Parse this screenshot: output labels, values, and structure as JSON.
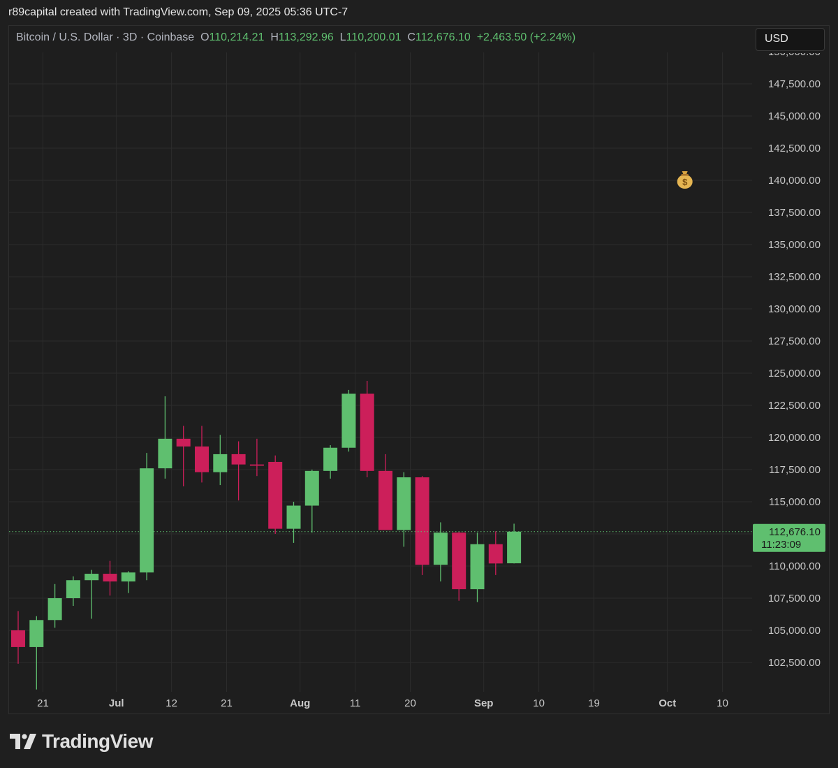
{
  "header": {
    "attribution": "r89capital created with TradingView.com, Sep 09, 2025 05:36 UTC-7"
  },
  "legend": {
    "symbol": "Bitcoin / U.S. Dollar · 3D · Coinbase",
    "o_label": "O",
    "o_value": "110,214.21",
    "h_label": "H",
    "h_value": "113,292.96",
    "l_label": "L",
    "l_value": "110,200.01",
    "c_label": "C",
    "c_value": "112,676.10",
    "change": "+2,463.50 (+2.24%)"
  },
  "currency_button": "USD",
  "price_label": {
    "price": "112,676.10",
    "countdown": "11:23:09"
  },
  "marker_icon": "money-bag-icon",
  "brand": "TradingView",
  "colors": {
    "up": "#5fbf6f",
    "down": "#cc1f5a",
    "background": "#1e1e1e",
    "grid": "#2c2c2c",
    "text": "#c8c8c8"
  },
  "chart_data": {
    "type": "candlestick",
    "title": "Bitcoin / U.S. Dollar · 3D · Coinbase",
    "ylim": [
      100000,
      150000
    ],
    "y_ticks": [
      102500,
      105000,
      107500,
      110000,
      112500,
      115000,
      117500,
      120000,
      122500,
      125000,
      127500,
      130000,
      132500,
      135000,
      137500,
      140000,
      142500,
      145000,
      147500
    ],
    "y_tick_labels": [
      "102,500.00",
      "105,000.00",
      "107,500.00",
      "110,000.00",
      "",
      "115,000.00",
      "117,500.00",
      "120,000.00",
      "122,500.00",
      "125,000.00",
      "127,500.00",
      "130,000.00",
      "132,500.00",
      "135,000.00",
      "137,500.00",
      "140,000.00",
      "142,500.00",
      "145,000.00",
      "147,500.00"
    ],
    "x_ticks": [
      {
        "label": "21",
        "index": 1.35,
        "bold": false
      },
      {
        "label": "Jul",
        "index": 5.35,
        "bold": true
      },
      {
        "label": "12",
        "index": 8.35,
        "bold": false
      },
      {
        "label": "21",
        "index": 11.35,
        "bold": false
      },
      {
        "label": "Aug",
        "index": 15.35,
        "bold": true
      },
      {
        "label": "11",
        "index": 18.35,
        "bold": false
      },
      {
        "label": "20",
        "index": 21.35,
        "bold": false
      },
      {
        "label": "Sep",
        "index": 25.35,
        "bold": true
      },
      {
        "label": "10",
        "index": 28.35,
        "bold": false
      },
      {
        "label": "19",
        "index": 31.35,
        "bold": false
      },
      {
        "label": "Oct",
        "index": 35.35,
        "bold": true
      },
      {
        "label": "10",
        "index": 38.35,
        "bold": false
      }
    ],
    "candles": [
      {
        "o": 105000,
        "h": 106500,
        "l": 102400,
        "c": 103700
      },
      {
        "o": 103700,
        "h": 106100,
        "l": 100400,
        "c": 105800
      },
      {
        "o": 105800,
        "h": 108600,
        "l": 105200,
        "c": 107500
      },
      {
        "o": 107500,
        "h": 109200,
        "l": 106900,
        "c": 108900
      },
      {
        "o": 108900,
        "h": 109700,
        "l": 105900,
        "c": 109400
      },
      {
        "o": 109400,
        "h": 110400,
        "l": 107700,
        "c": 108800
      },
      {
        "o": 108800,
        "h": 109600,
        "l": 107900,
        "c": 109500
      },
      {
        "o": 109500,
        "h": 118800,
        "l": 108900,
        "c": 117600
      },
      {
        "o": 117600,
        "h": 123200,
        "l": 116800,
        "c": 119900
      },
      {
        "o": 119900,
        "h": 120900,
        "l": 116200,
        "c": 119300
      },
      {
        "o": 119300,
        "h": 120900,
        "l": 116500,
        "c": 117300
      },
      {
        "o": 117300,
        "h": 120200,
        "l": 116300,
        "c": 118700
      },
      {
        "o": 118700,
        "h": 119700,
        "l": 115100,
        "c": 117900
      },
      {
        "o": 117900,
        "h": 119900,
        "l": 117000,
        "c": 117800
      },
      {
        "o": 118100,
        "h": 118600,
        "l": 112500,
        "c": 112900
      },
      {
        "o": 112900,
        "h": 115000,
        "l": 111800,
        "c": 114700
      },
      {
        "o": 114700,
        "h": 117500,
        "l": 112600,
        "c": 117400
      },
      {
        "o": 117400,
        "h": 119400,
        "l": 116800,
        "c": 119200
      },
      {
        "o": 119200,
        "h": 123700,
        "l": 118900,
        "c": 123400
      },
      {
        "o": 123400,
        "h": 124400,
        "l": 116900,
        "c": 117400
      },
      {
        "o": 117400,
        "h": 118700,
        "l": 112800,
        "c": 112800
      },
      {
        "o": 112800,
        "h": 117300,
        "l": 111500,
        "c": 116900
      },
      {
        "o": 116900,
        "h": 117000,
        "l": 109300,
        "c": 110100
      },
      {
        "o": 110100,
        "h": 113400,
        "l": 108800,
        "c": 112600
      },
      {
        "o": 112600,
        "h": 112700,
        "l": 107300,
        "c": 108200
      },
      {
        "o": 108200,
        "h": 112600,
        "l": 107200,
        "c": 111700
      },
      {
        "o": 111700,
        "h": 112700,
        "l": 109300,
        "c": 110200
      },
      {
        "o": 110214.21,
        "h": 113292.96,
        "l": 110200.01,
        "c": 112676.1
      }
    ],
    "last_price": 112676.1,
    "marker": {
      "index": 36.3,
      "price": 140000
    }
  }
}
